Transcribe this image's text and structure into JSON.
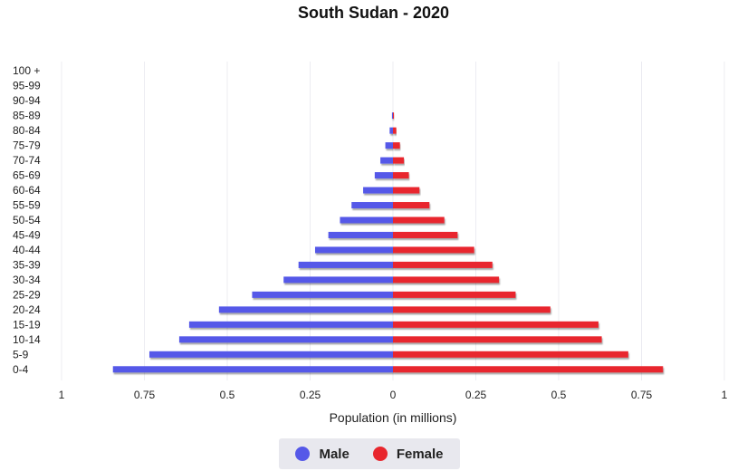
{
  "chart_data": {
    "type": "bar",
    "orientation": "horizontal",
    "title": "South Sudan - 2020",
    "xlabel": "Population (in millions)",
    "ylabel": "",
    "xlim": [
      -1,
      1
    ],
    "x_ticks": [
      {
        "value": -1,
        "label": "1"
      },
      {
        "value": -0.75,
        "label": "0.75"
      },
      {
        "value": -0.5,
        "label": "0.5"
      },
      {
        "value": -0.25,
        "label": "0.25"
      },
      {
        "value": 0,
        "label": "0"
      },
      {
        "value": 0.25,
        "label": "0.25"
      },
      {
        "value": 0.5,
        "label": "0.5"
      },
      {
        "value": 0.75,
        "label": "0.75"
      },
      {
        "value": 1,
        "label": "1"
      }
    ],
    "grid": true,
    "legend_position": "bottom-center",
    "categories": [
      "0-4",
      "5-9",
      "10-14",
      "15-19",
      "20-24",
      "25-29",
      "30-34",
      "35-39",
      "40-44",
      "45-49",
      "50-54",
      "55-59",
      "60-64",
      "65-69",
      "70-74",
      "75-79",
      "80-84",
      "85-89",
      "90-94",
      "95-99",
      "100 +"
    ],
    "series": [
      {
        "name": "Male",
        "color": "#5558e8",
        "values": [
          0.845,
          0.735,
          0.645,
          0.615,
          0.525,
          0.425,
          0.33,
          0.285,
          0.235,
          0.195,
          0.16,
          0.125,
          0.09,
          0.055,
          0.038,
          0.023,
          0.01,
          0.003,
          0.0,
          0.0,
          0.0
        ]
      },
      {
        "name": "Female",
        "color": "#e8262d",
        "values": [
          0.815,
          0.71,
          0.63,
          0.62,
          0.475,
          0.37,
          0.32,
          0.3,
          0.245,
          0.195,
          0.155,
          0.11,
          0.08,
          0.048,
          0.033,
          0.021,
          0.01,
          0.003,
          0.0,
          0.0,
          0.0
        ]
      }
    ]
  }
}
